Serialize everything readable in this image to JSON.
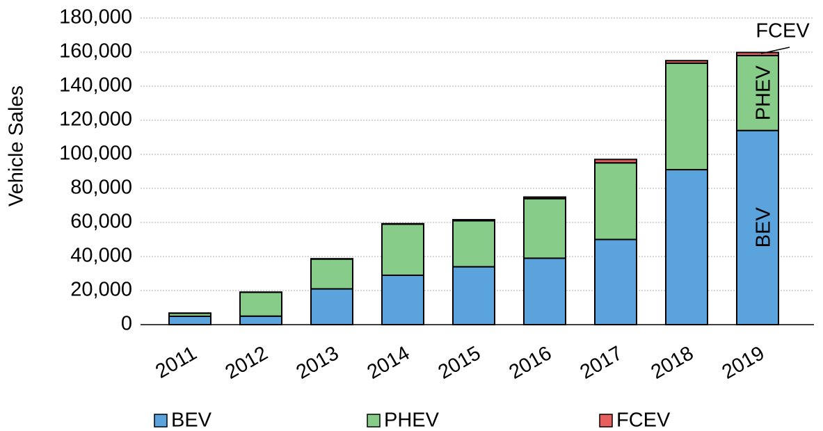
{
  "chart_data": {
    "type": "bar",
    "stacked": true,
    "y_label": "Vehicle Sales",
    "categories": [
      "2011",
      "2012",
      "2013",
      "2014",
      "2015",
      "2016",
      "2017",
      "2018",
      "2019"
    ],
    "series": [
      {
        "name": "BEV",
        "color": "#5ba3dc",
        "values": [
          4900,
          5000,
          21000,
          29000,
          34000,
          39000,
          50000,
          91000,
          114000
        ]
      },
      {
        "name": "PHEV",
        "color": "#88cc8a",
        "values": [
          1800,
          14000,
          17500,
          30000,
          27000,
          35000,
          45000,
          62500,
          44000
        ]
      },
      {
        "name": "FCEV",
        "color": "#e8605e",
        "values": [
          100,
          100,
          200,
          300,
          600,
          900,
          2000,
          1500,
          1800
        ]
      }
    ],
    "ylim": [
      0,
      180000
    ],
    "yticks": [
      0,
      {
        "value": 20000,
        "label": "20,000"
      },
      {
        "value": 40000,
        "label": "40,000"
      },
      {
        "value": 60000,
        "label": "60,000"
      },
      {
        "value": 80000,
        "label": "80,000"
      },
      {
        "value": 100000,
        "label": "100,000"
      },
      {
        "value": 120000,
        "label": "120,000"
      },
      {
        "value": 140000,
        "label": "140,000"
      },
      {
        "value": 160000,
        "label": "160,000"
      },
      {
        "value": 180000,
        "label": "180,000"
      }
    ],
    "grid": true,
    "annotations": [
      "BEV",
      "PHEV",
      "FCEV"
    ],
    "legend": "bottom"
  }
}
